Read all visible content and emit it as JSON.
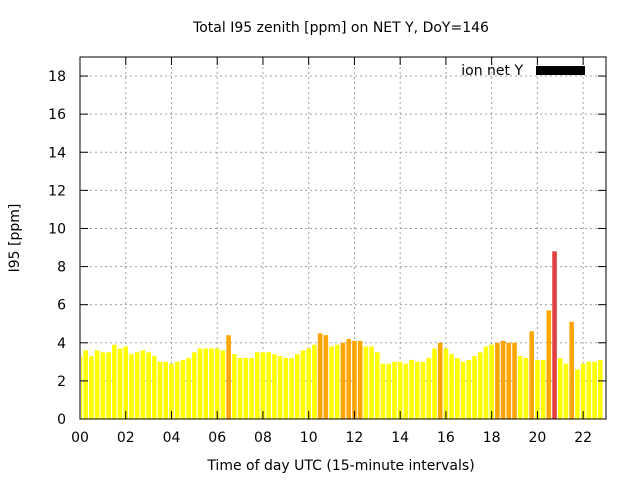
{
  "chart_data": {
    "type": "bar",
    "title": "Total I95 zenith [ppm] on NET Y, DoY=146",
    "xlabel": "Time of day UTC (15-minute intervals)",
    "ylabel": "I95 [ppm]",
    "xlim": [
      0,
      23
    ],
    "ylim": [
      0,
      19
    ],
    "x_ticks": [
      "00",
      "02",
      "04",
      "06",
      "08",
      "10",
      "12",
      "14",
      "16",
      "18",
      "20",
      "22"
    ],
    "y_ticks": [
      "0",
      "2",
      "4",
      "6",
      "8",
      "10",
      "12",
      "14",
      "16",
      "18"
    ],
    "grid": true,
    "legend": {
      "label": "ion net Y",
      "color": "#000000",
      "placement": "top-right"
    },
    "bar_width_hours": 0.2,
    "palette": {
      "low": "#ffff00",
      "medium": "#ffa500",
      "high": "#ff0000"
    },
    "series": [
      {
        "name": "ion net Y",
        "values": [
          3.3,
          3.6,
          3.3,
          3.6,
          3.5,
          3.5,
          3.9,
          3.7,
          3.8,
          3.4,
          3.5,
          3.6,
          3.5,
          3.3,
          3.0,
          3.0,
          2.9,
          3.0,
          3.1,
          3.2,
          3.5,
          3.7,
          3.7,
          3.7,
          3.7,
          3.6,
          4.4,
          3.4,
          3.2,
          3.2,
          3.2,
          3.5,
          3.5,
          3.5,
          3.4,
          3.3,
          3.2,
          3.2,
          3.4,
          3.6,
          3.7,
          3.9,
          4.5,
          4.4,
          3.8,
          3.9,
          4.0,
          4.2,
          4.1,
          4.1,
          3.8,
          3.8,
          3.5,
          2.9,
          2.9,
          3.0,
          3.0,
          2.9,
          3.1,
          3.0,
          3.0,
          3.2,
          3.7,
          4.0,
          3.7,
          3.4,
          3.2,
          3.0,
          3.1,
          3.3,
          3.5,
          3.8,
          3.9,
          4.0,
          4.1,
          4.0,
          4.0,
          3.3,
          3.2,
          4.6,
          3.1,
          3.1,
          5.7,
          8.8,
          3.2,
          2.9,
          5.1,
          2.6,
          2.9,
          3.0,
          3.0,
          3.1
        ]
      }
    ]
  }
}
